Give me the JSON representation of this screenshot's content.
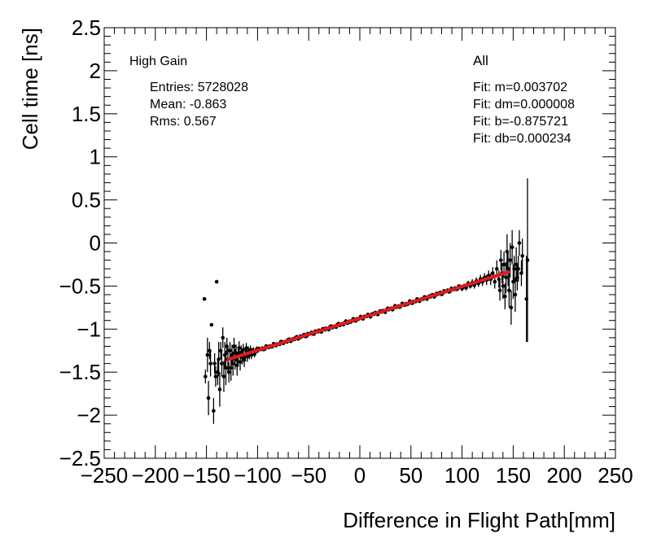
{
  "chart_data": {
    "type": "scatter",
    "title": "",
    "xlabel": "Difference in Flight Path[mm]",
    "ylabel": "Cell time [ns]",
    "xlim": [
      -250,
      250
    ],
    "ylim": [
      -2.5,
      2.5
    ],
    "x_ticks": [
      -250,
      -200,
      -150,
      -100,
      -50,
      0,
      50,
      100,
      150,
      200,
      250
    ],
    "x_tick_labels": [
      "−250",
      "−200",
      "−150",
      "−100",
      "−50",
      "0",
      "50",
      "100",
      "150",
      "200",
      "250"
    ],
    "y_ticks": [
      -2.5,
      -2,
      -1.5,
      -1,
      -0.5,
      0,
      0.5,
      1,
      1.5,
      2,
      2.5
    ],
    "y_tick_labels": [
      "−2.5",
      "−2",
      "−1.5",
      "−1",
      "−0.5",
      "0",
      "0.5",
      "1",
      "1.5",
      "2",
      "2.5"
    ],
    "grid": false,
    "stats": {
      "name": "High Gain",
      "entries": "Entries: 5728028",
      "mean": "Mean: -0.863",
      "rms": "Rms: 0.567"
    },
    "fit_box": {
      "label": "All",
      "m": "Fit: m=0.003702",
      "dm": "Fit: dm=0.000008",
      "b": "Fit: b=-0.875721",
      "db": "Fit: db=0.000234"
    },
    "fit_line": {
      "slope": 0.003702,
      "intercept": -0.875721,
      "x_range": [
        -130,
        147
      ],
      "color": "#e01b1b"
    },
    "series": [
      {
        "name": "profile",
        "points": [
          [
            -152,
            -0.65,
            0.0
          ],
          [
            -151,
            -1.55,
            0.08
          ],
          [
            -149,
            -1.3,
            0.2
          ],
          [
            -148,
            -1.8,
            0.2
          ],
          [
            -147,
            -1.25,
            0.1
          ],
          [
            -146,
            -1.4,
            0.15
          ],
          [
            -145,
            -0.95,
            0.0
          ],
          [
            -143,
            -1.95,
            0.15
          ],
          [
            -142,
            -1.4,
            0.12
          ],
          [
            -141,
            -1.55,
            0.12
          ],
          [
            -140,
            -0.45,
            0.0
          ],
          [
            -139,
            -1.5,
            0.15
          ],
          [
            -138,
            -1.35,
            0.2
          ],
          [
            -137,
            -1.7,
            0.2
          ],
          [
            -136,
            -1.25,
            0.1
          ],
          [
            -135,
            -1.4,
            0.15
          ],
          [
            -134,
            -1.1,
            0.12
          ],
          [
            -133,
            -1.55,
            0.18
          ],
          [
            -132,
            -1.3,
            0.15
          ],
          [
            -131,
            -1.45,
            0.2
          ],
          [
            -130,
            -1.2,
            0.1
          ],
          [
            -129,
            -1.35,
            0.15
          ],
          [
            -128,
            -1.5,
            0.12
          ],
          [
            -127,
            -1.25,
            0.1
          ],
          [
            -126,
            -1.45,
            0.15
          ],
          [
            -125,
            -1.3,
            0.12
          ],
          [
            -124,
            -1.4,
            0.14
          ],
          [
            -123,
            -1.2,
            0.1
          ],
          [
            -122,
            -1.35,
            0.12
          ],
          [
            -121,
            -1.28,
            0.1
          ],
          [
            -120,
            -1.42,
            0.12
          ],
          [
            -119,
            -1.3,
            0.1
          ],
          [
            -118,
            -1.22,
            0.08
          ],
          [
            -117,
            -1.38,
            0.1
          ],
          [
            -116,
            -1.27,
            0.08
          ],
          [
            -115,
            -1.33,
            0.08
          ],
          [
            -114,
            -1.24,
            0.07
          ],
          [
            -113,
            -1.36,
            0.08
          ],
          [
            -112,
            -1.3,
            0.06
          ],
          [
            -111,
            -1.22,
            0.06
          ],
          [
            -110,
            -1.32,
            0.06
          ],
          [
            -109,
            -1.26,
            0.06
          ],
          [
            -108,
            -1.3,
            0.05
          ],
          [
            -107,
            -1.24,
            0.05
          ],
          [
            -106,
            -1.3,
            0.05
          ],
          [
            -105,
            -1.27,
            0.05
          ],
          [
            -104,
            -1.25,
            0.04
          ],
          [
            -103,
            -1.29,
            0.04
          ],
          [
            -102,
            -1.26,
            0.04
          ],
          [
            -101,
            -1.24,
            0.04
          ]
        ]
      },
      {
        "name": "profile_right",
        "points": [
          [
            100,
            -0.53,
            0.03
          ],
          [
            102,
            -0.5,
            0.03
          ],
          [
            104,
            -0.52,
            0.03
          ],
          [
            106,
            -0.47,
            0.03
          ],
          [
            108,
            -0.5,
            0.03
          ],
          [
            110,
            -0.46,
            0.04
          ],
          [
            112,
            -0.49,
            0.04
          ],
          [
            114,
            -0.44,
            0.04
          ],
          [
            116,
            -0.47,
            0.04
          ],
          [
            118,
            -0.42,
            0.05
          ],
          [
            120,
            -0.45,
            0.05
          ],
          [
            122,
            -0.4,
            0.05
          ],
          [
            124,
            -0.43,
            0.06
          ],
          [
            126,
            -0.38,
            0.06
          ],
          [
            128,
            -0.42,
            0.07
          ],
          [
            130,
            -0.35,
            0.07
          ],
          [
            132,
            -0.45,
            0.08
          ],
          [
            134,
            -0.3,
            0.1
          ],
          [
            136,
            -0.42,
            0.1
          ],
          [
            137,
            -0.55,
            0.12
          ],
          [
            138,
            -0.2,
            0.12
          ],
          [
            139,
            -0.35,
            0.12
          ],
          [
            140,
            -0.5,
            0.15
          ],
          [
            141,
            -0.25,
            0.15
          ],
          [
            142,
            -0.62,
            0.15
          ],
          [
            143,
            -0.4,
            0.18
          ],
          [
            144,
            -0.1,
            0.2
          ],
          [
            145,
            -0.3,
            0.2
          ],
          [
            146,
            -0.55,
            0.2
          ],
          [
            147,
            -0.2,
            0.2
          ],
          [
            148,
            -0.75,
            0.2
          ],
          [
            149,
            -0.05,
            0.2
          ],
          [
            150,
            -0.45,
            0.2
          ],
          [
            151,
            -0.3,
            0.15
          ],
          [
            152,
            -0.6,
            0.2
          ],
          [
            153,
            -0.25,
            0.2
          ],
          [
            154,
            -0.4,
            0.15
          ],
          [
            155,
            -0.3,
            0.15
          ],
          [
            156,
            0.0,
            0.15
          ],
          [
            158,
            -0.35,
            0.15
          ],
          [
            159,
            -0.15,
            0.2
          ],
          [
            163,
            -0.65,
            0.5
          ],
          [
            164,
            -0.2,
            0.95
          ]
        ]
      }
    ]
  }
}
